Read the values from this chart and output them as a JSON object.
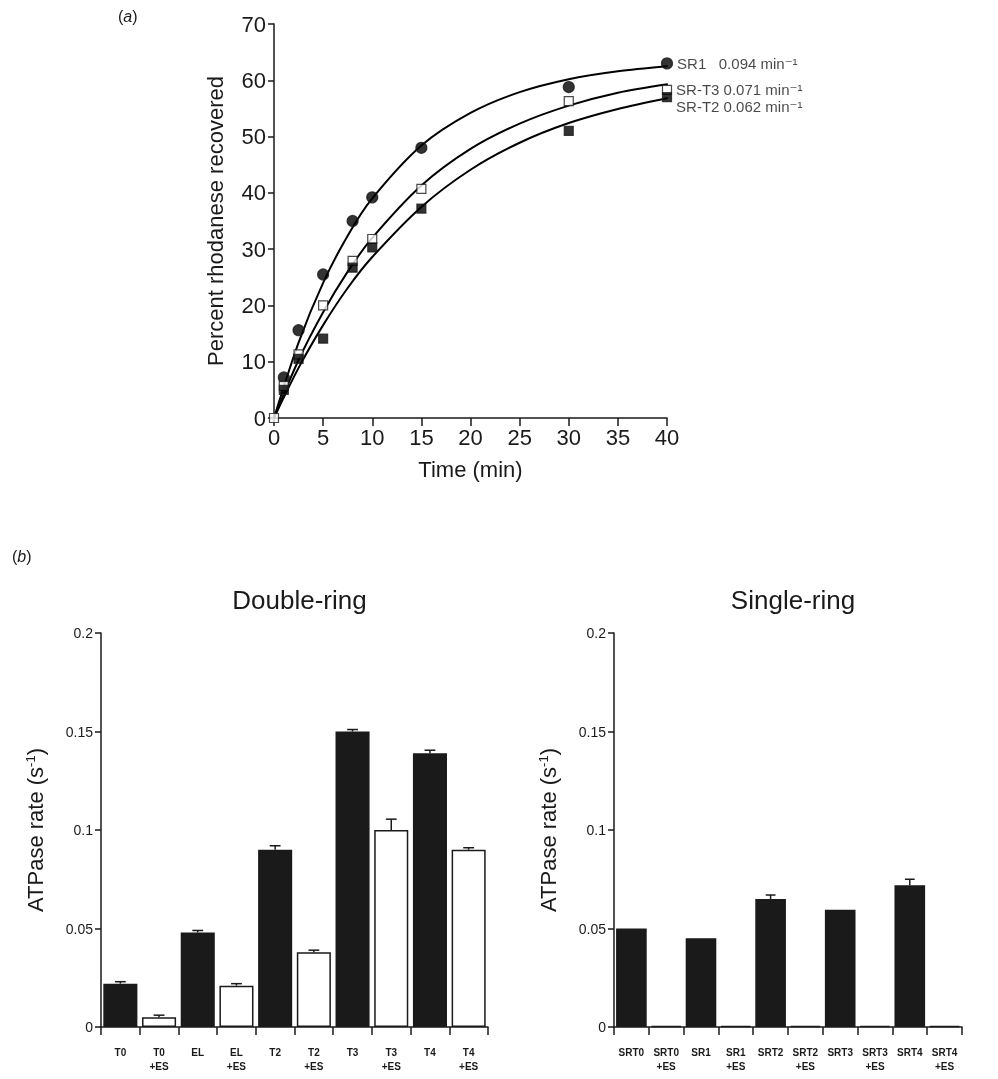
{
  "chart_data": [
    {
      "type": "scatter",
      "annotations": [
        "(a)"
      ],
      "xlabel": "Time (min)",
      "ylabel": "Percent rhodanese recovered",
      "xlim": [
        0,
        40
      ],
      "xticks": [
        0,
        5,
        10,
        15,
        20,
        25,
        30,
        35,
        40
      ],
      "ylim": [
        0,
        70
      ],
      "yticks": [
        0,
        10,
        20,
        30,
        40,
        50,
        60,
        70
      ],
      "grid": false,
      "legend": false,
      "series": [
        {
          "name": "SR1   0.094 min⁻¹",
          "color": "#000000",
          "marker": "circle",
          "x": [
            1,
            2.5,
            5,
            8,
            10,
            15,
            30,
            40
          ],
          "values": [
            7.2,
            15.6,
            25.5,
            35,
            39.2,
            48,
            58.8,
            63
          ]
        },
        {
          "name": "SR-T3 0.071 min⁻¹",
          "color": "#ffffff",
          "marker": "square",
          "x": [
            0,
            1,
            2.5,
            5,
            8,
            10,
            15,
            30,
            40
          ],
          "values": [
            0,
            5.7,
            11.3,
            20,
            27.9,
            31.8,
            40.7,
            56.3,
            58.3
          ]
        },
        {
          "name": "SR-T2 0.062 min⁻¹",
          "color": "#000000",
          "marker": "square",
          "x": [
            1,
            2.5,
            5,
            8,
            10,
            15,
            30,
            40
          ],
          "values": [
            5,
            10.5,
            14.1,
            26.7,
            30.3,
            37.2,
            51,
            57
          ]
        },
        {
          "type": "line",
          "color": "#000000",
          "marker": "none",
          "x": [
            0,
            2.5,
            5,
            7.5,
            10,
            15,
            20,
            25,
            30,
            35,
            40
          ],
          "values": [
            0,
            13.4,
            24,
            32.4,
            39,
            48.4,
            54.2,
            57.9,
            60.2,
            61.6,
            62.5
          ]
        },
        {
          "type": "line",
          "color": "#000000",
          "marker": "none",
          "x": [
            0,
            2.5,
            5,
            7.5,
            10,
            15,
            20,
            25,
            30,
            35,
            40
          ],
          "values": [
            0,
            10.3,
            18.8,
            26,
            32,
            41.3,
            47.8,
            52.3,
            55.5,
            57.8,
            59.3
          ]
        },
        {
          "type": "line",
          "color": "#000000",
          "marker": "none",
          "x": [
            0,
            2.5,
            5,
            7.5,
            10,
            15,
            20,
            25,
            30,
            35,
            40
          ],
          "values": [
            0,
            8.9,
            16.5,
            23.1,
            28.6,
            37.5,
            44.1,
            48.9,
            52.4,
            54.9,
            56.8
          ]
        }
      ]
    },
    {
      "type": "bar",
      "title": "Double-ring",
      "annotations": [
        "(b)"
      ],
      "ylabel": "ATPase rate (s$^{-1}$)",
      "ylim": [
        0,
        0.2
      ],
      "yticks": [
        0,
        0.05,
        0.1,
        0.15,
        0.2
      ],
      "grid": false,
      "legend": false,
      "categories": [
        "T0",
        "T0\n+ES",
        "EL",
        "EL\n+ES",
        "T2",
        "T2\n+ES",
        "T3",
        "T3\n+ES",
        "T4",
        "T4\n+ES"
      ],
      "values": [
        0.022,
        0.005,
        0.048,
        0.021,
        0.09,
        0.038,
        0.15,
        0.1,
        0.139,
        0.09
      ],
      "colors": [
        "#1a1a1a",
        "#ffffff",
        "#1a1a1a",
        "#ffffff",
        "#1a1a1a",
        "#ffffff",
        "#1a1a1a",
        "#ffffff",
        "#1a1a1a",
        "#ffffff"
      ],
      "errors": [
        [
          0.022,
          0.023
        ],
        [
          0.005,
          0.006
        ],
        [
          0.048,
          0.049
        ],
        [
          0.021,
          0.022
        ],
        [
          0.09,
          0.092
        ],
        [
          0.038,
          0.039
        ],
        [
          0.15,
          0.151
        ],
        [
          0.1,
          0.1055
        ],
        [
          0.139,
          0.1405
        ],
        [
          0.09,
          0.091
        ]
      ]
    },
    {
      "type": "bar",
      "title": "Single-ring",
      "ylabel": "ATPase rate (s$^{-1}$)",
      "ylim": [
        0,
        0.2
      ],
      "yticks": [
        0,
        0.05,
        0.1,
        0.15,
        0.2
      ],
      "grid": false,
      "legend": false,
      "categories": [
        "SRT0",
        "SRT0\n+ES",
        "SR1",
        "SR1\n+ES",
        "SRT2",
        "SRT2\n+ES",
        "SRT3",
        "SRT3\n+ES",
        "SRT4",
        "SRT4\n+ES"
      ],
      "values": [
        0.05,
        0.0005,
        0.045,
        0.0005,
        0.065,
        0.0005,
        0.0595,
        0.0005,
        0.072,
        0.0005
      ],
      "colors": [
        "#1a1a1a",
        "#1a1a1a",
        "#1a1a1a",
        "#1a1a1a",
        "#1a1a1a",
        "#1a1a1a",
        "#1a1a1a",
        "#1a1a1a",
        "#1a1a1a",
        "#1a1a1a"
      ],
      "errors": [
        null,
        null,
        null,
        null,
        [
          0.065,
          0.067
        ],
        null,
        null,
        null,
        [
          0.072,
          0.075
        ],
        null
      ]
    }
  ]
}
